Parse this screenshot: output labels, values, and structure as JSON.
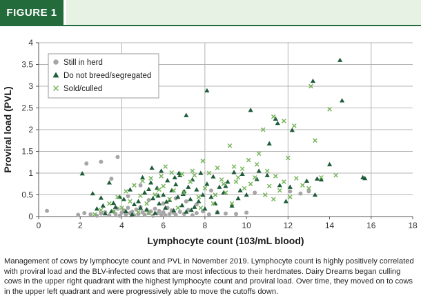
{
  "header": {
    "figure_label": "FIGURE 1"
  },
  "caption": "Management of cows by lymphocyte count and PVL in November 2019. Lymphocyte count is highly positively correlated with proviral load and the BLV-infected cows that are most infectious to their herdmates. Dairy Dreams began culling cows in the upper right quadrant with the highest lymphocyte count and proviral load. Over time, they moved on to cows in the upper left quadrant and were progressively able to move the cutoffs down.",
  "colors": {
    "still": "#a6a6a6",
    "breed": "#1f5c3a",
    "sold": "#76b55b",
    "grid": "#b3b3b3",
    "header_green": "#236b3b",
    "header_light": "#e7f1e4"
  },
  "chart_data": {
    "type": "scatter",
    "xlabel": "Lymphocyte count (103/mL blood)",
    "ylabel": "Proviral load (PVL)",
    "xlim": [
      0,
      18
    ],
    "ylim": [
      0,
      4
    ],
    "xticks": [
      "0",
      "2",
      "4",
      "6",
      "8",
      "10",
      "12",
      "14",
      "16",
      "18"
    ],
    "yticks": [
      "0",
      "0.5",
      "1",
      "1.5",
      "2",
      "2.5",
      "3",
      "3.5",
      "4"
    ],
    "xgrid": [
      4,
      8,
      12,
      16
    ],
    "ygrid": [
      0.5,
      1,
      1.5,
      2,
      2.5,
      3,
      3.5,
      4
    ],
    "legend": {
      "position": "top-left"
    },
    "series": [
      {
        "name": "Still in herd",
        "marker": "circle",
        "points": [
          [
            0.4,
            0.13
          ],
          [
            1.9,
            0.04
          ],
          [
            2.2,
            0.08
          ],
          [
            2.5,
            0.05
          ],
          [
            2.8,
            0.02
          ],
          [
            3.0,
            0.07
          ],
          [
            3.2,
            0.1
          ],
          [
            3.4,
            0.03
          ],
          [
            3.6,
            0.12
          ],
          [
            3.7,
            0.06
          ],
          [
            3.8,
            0.18
          ],
          [
            3.9,
            0.02
          ],
          [
            4.0,
            0.09
          ],
          [
            4.1,
            0.14
          ],
          [
            4.2,
            0.05
          ],
          [
            4.3,
            0.2
          ],
          [
            4.4,
            0.08
          ],
          [
            4.5,
            0.11
          ],
          [
            4.6,
            0.03
          ],
          [
            4.7,
            0.16
          ],
          [
            4.8,
            0.06
          ],
          [
            4.9,
            0.22
          ],
          [
            5.0,
            0.1
          ],
          [
            5.1,
            0.04
          ],
          [
            5.2,
            0.15
          ],
          [
            5.3,
            0.08
          ],
          [
            5.4,
            0.12
          ],
          [
            5.5,
            0.02
          ],
          [
            5.6,
            0.18
          ],
          [
            5.7,
            0.07
          ],
          [
            5.8,
            0.13
          ],
          [
            5.9,
            0.05
          ],
          [
            6.0,
            0.1
          ],
          [
            6.1,
            0.03
          ],
          [
            6.2,
            0.2
          ],
          [
            6.3,
            0.06
          ],
          [
            6.4,
            0.14
          ],
          [
            6.5,
            0.09
          ],
          [
            6.6,
            0.04
          ],
          [
            6.8,
            0.11
          ],
          [
            7.0,
            0.06
          ],
          [
            7.2,
            0.15
          ],
          [
            7.4,
            0.03
          ],
          [
            7.6,
            0.08
          ],
          [
            7.9,
            0.12
          ],
          [
            8.2,
            0.05
          ],
          [
            8.6,
            0.1
          ],
          [
            9.0,
            0.07
          ],
          [
            9.5,
            0.06
          ],
          [
            10.0,
            0.09
          ],
          [
            2.3,
            1.22
          ],
          [
            3.0,
            1.26
          ],
          [
            3.5,
            0.87
          ],
          [
            3.8,
            1.37
          ],
          [
            4.3,
            0.47
          ],
          [
            4.9,
            0.72
          ],
          [
            5.3,
            0.38
          ],
          [
            6.0,
            0.3
          ],
          [
            6.6,
            0.42
          ],
          [
            7.1,
            0.35
          ],
          [
            7.6,
            0.28
          ],
          [
            8.3,
            0.6
          ],
          [
            10.4,
            0.55
          ],
          [
            12.1,
            0.58
          ],
          [
            12.6,
            0.53
          ],
          [
            13.0,
            0.58
          ]
        ]
      },
      {
        "name": "Do not breed/segregated",
        "marker": "triangle",
        "points": [
          [
            14.5,
            3.6
          ],
          [
            13.2,
            3.12
          ],
          [
            14.6,
            2.67
          ],
          [
            8.1,
            2.9
          ],
          [
            10.2,
            2.45
          ],
          [
            11.4,
            2.25
          ],
          [
            11.5,
            2.15
          ],
          [
            7.1,
            2.33
          ],
          [
            12.2,
            1.99
          ],
          [
            11.1,
            1.68
          ],
          [
            14.0,
            1.2
          ],
          [
            15.6,
            0.9
          ],
          [
            15.7,
            0.88
          ],
          [
            13.4,
            0.87
          ],
          [
            13.6,
            0.85
          ],
          [
            12.9,
            0.82
          ],
          [
            11.6,
            0.72
          ],
          [
            12.1,
            0.68
          ],
          [
            11.0,
            0.95
          ],
          [
            10.6,
            1.05
          ],
          [
            10.5,
            0.86
          ],
          [
            9.4,
            1.02
          ],
          [
            9.8,
            0.98
          ],
          [
            11.9,
            0.35
          ],
          [
            13.3,
            0.5
          ],
          [
            10.0,
            0.5
          ],
          [
            9.6,
            0.42
          ],
          [
            2.1,
            0.99
          ],
          [
            2.6,
            0.53
          ],
          [
            3.0,
            0.43
          ],
          [
            3.4,
            0.78
          ],
          [
            2.8,
            0.18
          ],
          [
            3.2,
            0.07
          ],
          [
            3.6,
            0.31
          ],
          [
            3.7,
            0.22
          ],
          [
            3.9,
            0.45
          ],
          [
            4.2,
            0.12
          ],
          [
            4.4,
            0.62
          ],
          [
            4.6,
            0.28
          ],
          [
            4.8,
            0.35
          ],
          [
            5.0,
            0.9
          ],
          [
            5.1,
            0.55
          ],
          [
            5.2,
            0.16
          ],
          [
            5.4,
            0.78
          ],
          [
            5.5,
            0.42
          ],
          [
            5.6,
            0.08
          ],
          [
            5.7,
            0.66
          ],
          [
            5.8,
            0.3
          ],
          [
            5.9,
            1.05
          ],
          [
            6.0,
            0.5
          ],
          [
            6.1,
            0.2
          ],
          [
            6.2,
            0.83
          ],
          [
            6.3,
            0.38
          ],
          [
            6.4,
            0.6
          ],
          [
            6.5,
            0.14
          ],
          [
            6.6,
            0.74
          ],
          [
            6.7,
            0.45
          ],
          [
            6.8,
            0.95
          ],
          [
            6.9,
            0.26
          ],
          [
            7.0,
            0.58
          ],
          [
            7.1,
            0.11
          ],
          [
            7.2,
            0.68
          ],
          [
            7.3,
            0.4
          ],
          [
            7.4,
            0.85
          ],
          [
            7.5,
            0.22
          ],
          [
            7.6,
            0.62
          ],
          [
            7.7,
            0.35
          ],
          [
            7.8,
            1.0
          ],
          [
            7.9,
            0.5
          ],
          [
            8.0,
            0.18
          ],
          [
            8.1,
            0.75
          ],
          [
            8.3,
            0.45
          ],
          [
            8.4,
            0.92
          ],
          [
            8.5,
            0.3
          ],
          [
            8.7,
            0.68
          ],
          [
            8.9,
            0.55
          ],
          [
            9.1,
            0.8
          ],
          [
            9.3,
            0.25
          ],
          [
            4.1,
            0.4
          ],
          [
            4.5,
            0.05
          ],
          [
            4.9,
            0.2
          ],
          [
            5.3,
            0.63
          ],
          [
            5.75,
            0.48
          ],
          [
            6.15,
            0.34
          ],
          [
            6.55,
            0.9
          ],
          [
            6.95,
            0.52
          ],
          [
            3.5,
            0.12
          ],
          [
            3.1,
            0.25
          ],
          [
            5.45,
            1.12
          ],
          [
            6.75,
            1.0
          ],
          [
            7.35,
            0.15
          ],
          [
            8.6,
            0.1
          ],
          [
            9.0,
            0.7
          ],
          [
            9.7,
            0.6
          ]
        ]
      },
      {
        "name": "Sold/culled",
        "marker": "x",
        "points": [
          [
            13.1,
            3.0
          ],
          [
            13.3,
            1.75
          ],
          [
            14.0,
            2.47
          ],
          [
            12.3,
            2.09
          ],
          [
            10.8,
            2.0
          ],
          [
            11.3,
            2.3
          ],
          [
            11.8,
            2.2
          ],
          [
            9.2,
            1.63
          ],
          [
            10.6,
            1.45
          ],
          [
            12.0,
            1.35
          ],
          [
            10.1,
            1.3
          ],
          [
            9.8,
            1.1
          ],
          [
            10.5,
            1.2
          ],
          [
            11.0,
            1.05
          ],
          [
            11.4,
            0.93
          ],
          [
            11.8,
            0.8
          ],
          [
            12.4,
            0.88
          ],
          [
            12.7,
            0.72
          ],
          [
            13.0,
            0.65
          ],
          [
            13.6,
            0.9
          ],
          [
            14.3,
            0.95
          ],
          [
            10.2,
            0.75
          ],
          [
            10.9,
            0.5
          ],
          [
            11.3,
            0.4
          ],
          [
            9.6,
            0.9
          ],
          [
            9.4,
            1.15
          ],
          [
            8.6,
            1.12
          ],
          [
            7.9,
            1.28
          ],
          [
            7.4,
            1.05
          ],
          [
            6.9,
            0.98
          ],
          [
            6.4,
            1.01
          ],
          [
            5.9,
            0.93
          ],
          [
            5.4,
            0.88
          ],
          [
            5.0,
            0.82
          ],
          [
            4.6,
            0.72
          ],
          [
            4.2,
            0.58
          ],
          [
            3.8,
            0.45
          ],
          [
            3.4,
            0.3
          ],
          [
            3.0,
            0.15
          ],
          [
            2.7,
            0.05
          ],
          [
            4.0,
            0.2
          ],
          [
            4.4,
            0.35
          ],
          [
            4.8,
            0.1
          ],
          [
            5.2,
            0.3
          ],
          [
            5.6,
            0.5
          ],
          [
            6.0,
            0.7
          ],
          [
            6.3,
            0.4
          ],
          [
            6.7,
            0.2
          ],
          [
            7.0,
            0.55
          ],
          [
            7.3,
            0.8
          ],
          [
            7.7,
            0.45
          ],
          [
            8.0,
            0.65
          ],
          [
            8.4,
            0.3
          ],
          [
            8.8,
            0.85
          ],
          [
            9.0,
            0.55
          ],
          [
            9.3,
            0.3
          ],
          [
            9.9,
            0.65
          ],
          [
            5.3,
            0.08
          ],
          [
            5.8,
            0.62
          ],
          [
            6.5,
            0.6
          ],
          [
            7.5,
            0.95
          ],
          [
            8.2,
            1.0
          ],
          [
            8.9,
            0.75
          ],
          [
            10.4,
            0.9
          ],
          [
            11.6,
            0.6
          ],
          [
            4.9,
            0.48
          ],
          [
            3.6,
            0.12
          ],
          [
            6.1,
            1.15
          ],
          [
            7.8,
            0.2
          ],
          [
            8.5,
            0.5
          ],
          [
            9.5,
            0.8
          ],
          [
            11.1,
            0.7
          ],
          [
            12.1,
            0.45
          ]
        ]
      }
    ]
  }
}
